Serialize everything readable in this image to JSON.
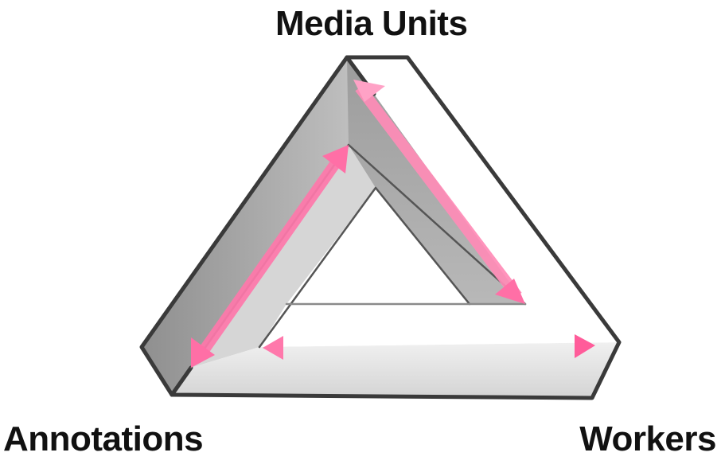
{
  "diagram": {
    "labels": {
      "top": "Media Units",
      "bottom_left": "Annotations",
      "bottom_right": "Workers"
    },
    "colors": {
      "outline": "#3a3a3a",
      "face_dark": "#a9a9a9",
      "face_light": "#dcdcdc",
      "face_white": "#ffffff",
      "arrow": "#ff6fa6"
    },
    "arrows": [
      {
        "from": "bottom_left",
        "to": "top",
        "style": "double-headed"
      },
      {
        "from": "top",
        "to": "bottom_right",
        "style": "double-headed"
      },
      {
        "from": "bottom_left",
        "to": "bottom_right",
        "style": "double-headed"
      }
    ]
  }
}
